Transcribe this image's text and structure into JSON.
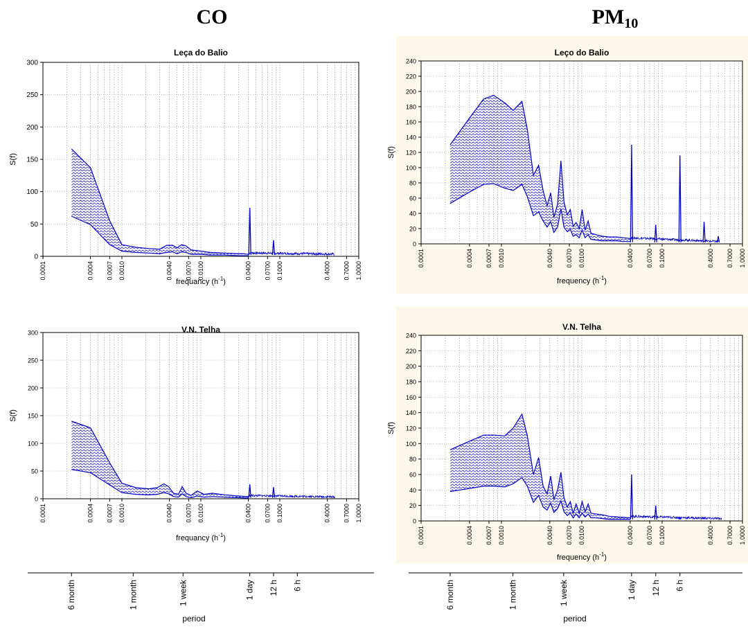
{
  "columns": {
    "co": {
      "title": "CO"
    },
    "pm": {
      "title_main": "PM",
      "title_sub": "10"
    }
  },
  "colors": {
    "series": "#0000c8",
    "hatch": "#0000c8",
    "grid": "#8a8a8a",
    "panel_bg_pm": "#fdf8ea"
  },
  "period_axis": {
    "label": "period",
    "ticks": [
      {
        "label": "6 month",
        "freq": 0.00023
      },
      {
        "label": "1 month",
        "freq": 0.00139
      },
      {
        "label": "1 week",
        "freq": 0.00595
      },
      {
        "label": "1 day",
        "freq": 0.04167
      },
      {
        "label": "12 h",
        "freq": 0.08333
      },
      {
        "label": "6 h",
        "freq": 0.16667
      }
    ]
  },
  "chart_data": [
    {
      "type": "area",
      "id": "co-leca",
      "title": "Leça do Balio",
      "xlabel": "frequancy (h-1)",
      "xlabel_main": "frequancy (h",
      "xlabel_sup": "-1",
      "xlabel_end": ")",
      "ylabel": "S(f)",
      "xscale": "log",
      "xlim": [
        0.0001,
        1.0
      ],
      "ylim": [
        0,
        300
      ],
      "yticks": [
        0,
        50,
        100,
        150,
        200,
        250,
        300
      ],
      "xticks": [
        "0.0001",
        "0.0004",
        "0.0007",
        "0.0010",
        "0.0040",
        "0.0070",
        "0.0100",
        "0.0400",
        "0.0700",
        "0.1000",
        "0.4000",
        "0.7000",
        "1.0000"
      ],
      "grid": true,
      "series": [
        {
          "name": "upper",
          "x": [
            0.00023,
            0.0004,
            0.0007,
            0.001,
            0.0015,
            0.0022,
            0.003,
            0.0037,
            0.0044,
            0.005,
            0.0057,
            0.0065,
            0.0075,
            0.0085,
            0.01,
            0.013,
            0.02,
            0.03,
            0.035,
            0.04
          ],
          "y": [
            166,
            137,
            55,
            18,
            14,
            12,
            11,
            17,
            17,
            13,
            18,
            16,
            10,
            9,
            8,
            6,
            5,
            4,
            4,
            3
          ]
        },
        {
          "name": "lower",
          "x": [
            0.00023,
            0.0004,
            0.0007,
            0.001,
            0.0015,
            0.0022,
            0.003,
            0.0037,
            0.0044,
            0.005,
            0.0057,
            0.0065,
            0.0075,
            0.0085,
            0.01,
            0.013,
            0.02,
            0.03,
            0.035,
            0.04
          ],
          "y": [
            62,
            49,
            18,
            8,
            6,
            5,
            4,
            6,
            7,
            4,
            7,
            6,
            3,
            3,
            3,
            2,
            2,
            1,
            1,
            1
          ]
        }
      ],
      "peaks": [
        {
          "x": 0.0417,
          "y": 75
        },
        {
          "x": 0.0833,
          "y": 25
        }
      ],
      "tail_end": 0.49
    },
    {
      "type": "area",
      "id": "pm-leco",
      "title": "Leço do Balio",
      "xlabel": "frequency (h-1)",
      "xlabel_main": "frequency (h",
      "xlabel_sup": "-1",
      "xlabel_end": ")",
      "ylabel": "S(f)",
      "xscale": "log",
      "xlim": [
        0.0001,
        1.0
      ],
      "ylim": [
        0,
        240
      ],
      "yticks": [
        0,
        20,
        40,
        60,
        80,
        100,
        120,
        140,
        160,
        180,
        200,
        220,
        240
      ],
      "xticks": [
        "0.0001",
        "0.0004",
        "0.0007",
        "0.0010",
        "0.0040",
        "0.0070",
        "0.0100",
        "0.0400",
        "0.0700",
        "0.1000",
        "0.4000",
        "0.7000",
        "1.0000"
      ],
      "grid": true,
      "series": [
        {
          "name": "upper",
          "x": [
            0.00023,
            0.0004,
            0.0006,
            0.0008,
            0.0011,
            0.0014,
            0.0018,
            0.0021,
            0.0025,
            0.0029,
            0.0033,
            0.0037,
            0.0041,
            0.0045,
            0.005,
            0.0055,
            0.006,
            0.0066,
            0.0072,
            0.0078,
            0.0085,
            0.0093,
            0.0101,
            0.011,
            0.012,
            0.013,
            0.015,
            0.018,
            0.022,
            0.027,
            0.033,
            0.04
          ],
          "y": [
            130,
            165,
            190,
            195,
            185,
            175,
            187,
            150,
            90,
            103,
            70,
            50,
            67,
            35,
            52,
            109,
            55,
            38,
            45,
            23,
            28,
            20,
            45,
            18,
            30,
            14,
            12,
            10,
            9,
            9,
            8,
            7
          ]
        },
        {
          "name": "lower",
          "x": [
            0.00023,
            0.0004,
            0.0006,
            0.0008,
            0.0011,
            0.0014,
            0.0018,
            0.0021,
            0.0025,
            0.0029,
            0.0033,
            0.0037,
            0.0041,
            0.0045,
            0.005,
            0.0055,
            0.006,
            0.0066,
            0.0072,
            0.0078,
            0.0085,
            0.0093,
            0.0101,
            0.011,
            0.012,
            0.013,
            0.015,
            0.018,
            0.022,
            0.027,
            0.033,
            0.04
          ],
          "y": [
            53,
            68,
            78,
            79,
            73,
            70,
            78,
            62,
            37,
            42,
            30,
            22,
            29,
            15,
            22,
            46,
            22,
            16,
            19,
            10,
            12,
            8,
            18,
            8,
            12,
            6,
            5,
            4,
            4,
            4,
            3,
            3
          ]
        }
      ],
      "peaks": [
        {
          "x": 0.0417,
          "y": 130
        },
        {
          "x": 0.0833,
          "y": 25
        },
        {
          "x": 0.1667,
          "y": 116
        },
        {
          "x": 0.333,
          "y": 29
        },
        {
          "x": 0.5,
          "y": 10
        }
      ],
      "tail_end": 0.5
    },
    {
      "type": "area",
      "id": "co-telha",
      "title": "V.N. Telha",
      "xlabel": "frequancy (h-1)",
      "xlabel_main": "frequancy (h",
      "xlabel_sup": "-1",
      "xlabel_end": ")",
      "ylabel": "S(f)",
      "xscale": "log",
      "xlim": [
        0.0001,
        1.0
      ],
      "ylim": [
        0,
        300
      ],
      "yticks": [
        0,
        50,
        100,
        150,
        200,
        250,
        300
      ],
      "xticks": [
        "0.0001",
        "0.0004",
        "0.0007",
        "0.0010",
        "0.0040",
        "0.0070",
        "0.0100",
        "0.0400",
        "0.0700",
        "0.1000",
        "0.4000",
        "0.7000",
        "1.0000"
      ],
      "grid": true,
      "series": [
        {
          "name": "upper",
          "x": [
            0.00023,
            0.0004,
            0.0007,
            0.001,
            0.0015,
            0.0022,
            0.0028,
            0.0034,
            0.0039,
            0.0045,
            0.0052,
            0.0058,
            0.0065,
            0.0075,
            0.009,
            0.011,
            0.014,
            0.02,
            0.03,
            0.04
          ],
          "y": [
            140,
            128,
            65,
            28,
            20,
            18,
            20,
            27,
            22,
            10,
            8,
            22,
            10,
            6,
            14,
            8,
            10,
            7,
            5,
            4
          ]
        },
        {
          "name": "lower",
          "x": [
            0.00023,
            0.0004,
            0.0007,
            0.001,
            0.0015,
            0.0022,
            0.0028,
            0.0034,
            0.0039,
            0.0045,
            0.0052,
            0.0058,
            0.0065,
            0.0075,
            0.009,
            0.011,
            0.014,
            0.02,
            0.03,
            0.04
          ],
          "y": [
            53,
            47,
            25,
            11,
            8,
            7,
            8,
            11,
            9,
            4,
            3,
            9,
            4,
            2,
            5,
            3,
            4,
            3,
            2,
            1
          ]
        }
      ],
      "peaks": [
        {
          "x": 0.0417,
          "y": 26
        },
        {
          "x": 0.0833,
          "y": 21
        }
      ],
      "tail_end": 0.5
    },
    {
      "type": "area",
      "id": "pm-telha",
      "title": "V.N. Telha",
      "xlabel": "frequency (h-1)",
      "xlabel_main": "frequency (h",
      "xlabel_sup": "-1",
      "xlabel_end": ")",
      "ylabel": "S(f)",
      "xscale": "log",
      "xlim": [
        0.0001,
        1.0
      ],
      "ylim": [
        0,
        240
      ],
      "yticks": [
        0,
        20,
        40,
        60,
        80,
        100,
        120,
        140,
        160,
        180,
        200,
        220,
        240
      ],
      "xticks": [
        "0.0001",
        "0.0004",
        "0.0007",
        "0.0010",
        "0.0040",
        "0.0070",
        "0.0100",
        "0.0400",
        "0.0700",
        "0.1000",
        "0.4000",
        "0.7000",
        "1.0000"
      ],
      "grid": true,
      "series": [
        {
          "name": "upper",
          "x": [
            0.00023,
            0.0004,
            0.0006,
            0.0008,
            0.0011,
            0.0014,
            0.0018,
            0.0021,
            0.0025,
            0.0029,
            0.0033,
            0.0037,
            0.0041,
            0.0045,
            0.005,
            0.0055,
            0.006,
            0.0066,
            0.0072,
            0.0078,
            0.0085,
            0.0093,
            0.0101,
            0.011,
            0.012,
            0.013,
            0.015,
            0.018,
            0.022,
            0.03,
            0.04
          ],
          "y": [
            92,
            103,
            111,
            111,
            110,
            120,
            138,
            110,
            60,
            82,
            45,
            35,
            58,
            28,
            40,
            63,
            30,
            18,
            25,
            10,
            22,
            10,
            25,
            12,
            22,
            10,
            9,
            8,
            6,
            5,
            4
          ]
        },
        {
          "name": "lower",
          "x": [
            0.00023,
            0.0004,
            0.0006,
            0.0008,
            0.0011,
            0.0014,
            0.0018,
            0.0021,
            0.0025,
            0.0029,
            0.0033,
            0.0037,
            0.0041,
            0.0045,
            0.005,
            0.0055,
            0.006,
            0.0066,
            0.0072,
            0.0078,
            0.0085,
            0.0093,
            0.0101,
            0.011,
            0.012,
            0.013,
            0.015,
            0.018,
            0.022,
            0.03,
            0.04
          ],
          "y": [
            38,
            42,
            45,
            45,
            44,
            48,
            56,
            45,
            24,
            33,
            18,
            14,
            23,
            11,
            16,
            26,
            12,
            7,
            10,
            4,
            9,
            4,
            10,
            5,
            9,
            4,
            4,
            3,
            2,
            2,
            2
          ]
        }
      ],
      "peaks": [
        {
          "x": 0.0417,
          "y": 60
        },
        {
          "x": 0.0833,
          "y": 20
        },
        {
          "x": 0.1667,
          "y": 4
        }
      ],
      "tail_end": 0.55
    }
  ]
}
